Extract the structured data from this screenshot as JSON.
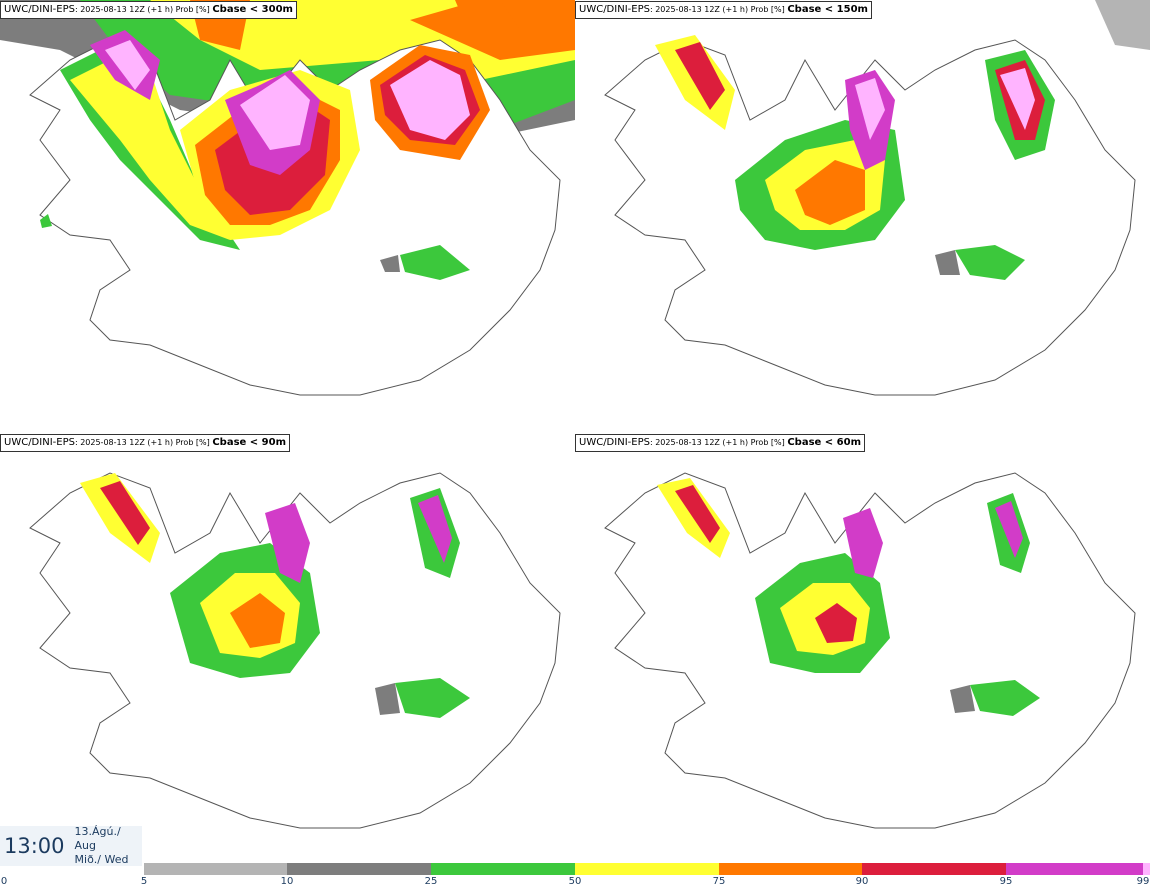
{
  "panels": [
    {
      "model": "UWC/DINI-EPS",
      "meta": ": 2025-08-13 12Z (+1 h) Prob [%] ",
      "param": "Cbase < 300m"
    },
    {
      "model": "UWC/DINI-EPS",
      "meta": ": 2025-08-13 12Z (+1 h) Prob [%] ",
      "param": "Cbase < 150m"
    },
    {
      "model": "UWC/DINI-EPS",
      "meta": ": 2025-08-13 12Z (+1 h) Prob [%] ",
      "param": "Cbase < 90m"
    },
    {
      "model": "UWC/DINI-EPS",
      "meta": ": 2025-08-13 12Z (+1 h) Prob [%] ",
      "param": "Cbase < 60m"
    }
  ],
  "timestamp": {
    "time": "13:00",
    "date_line1": "13.Ágú./ Aug",
    "date_line2": "Mið./ Wed"
  },
  "legend": {
    "ticks": [
      "0",
      "5",
      "10",
      "25",
      "50",
      "75",
      "90",
      "95",
      "99"
    ],
    "bins": [
      {
        "from": 5,
        "to": 10,
        "color": "#b4b4b4"
      },
      {
        "from": 10,
        "to": 25,
        "color": "#7d7d7d"
      },
      {
        "from": 25,
        "to": 50,
        "color": "#3cc83c"
      },
      {
        "from": 50,
        "to": 75,
        "color": "#ffff32"
      },
      {
        "from": 75,
        "to": 90,
        "color": "#ff7800"
      },
      {
        "from": 90,
        "to": 95,
        "color": "#dc1e3c"
      },
      {
        "from": 95,
        "to": 99,
        "color": "#d23cc8"
      },
      {
        "from": 99,
        "to": 100,
        "color": "#ffb4ff"
      }
    ]
  }
}
